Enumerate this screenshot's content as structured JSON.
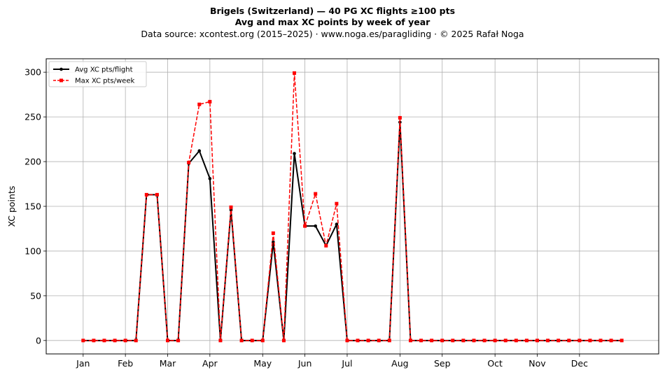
{
  "header": {
    "title": "Brigels (Switzerland)  —  40 PG XC flights ≥100 pts",
    "subtitle": "Avg and max XC points by week of year",
    "source": "Data source: xcontest.org (2015–2025)  ·  www.noga.es/paragliding  ·  © 2025 Rafał Noga"
  },
  "chart_data": {
    "type": "line",
    "title": "Brigels (Switzerland)  —  40 PG XC flights ≥100 pts",
    "subtitle": "Avg and max XC points by week of year",
    "xlabel": "",
    "ylabel": "XC points",
    "x": [
      1,
      2,
      3,
      4,
      5,
      6,
      7,
      8,
      9,
      10,
      11,
      12,
      13,
      14,
      15,
      16,
      17,
      18,
      19,
      20,
      21,
      22,
      23,
      24,
      25,
      26,
      27,
      28,
      29,
      30,
      31,
      32,
      33,
      34,
      35,
      36,
      37,
      38,
      39,
      40,
      41,
      42,
      43,
      44,
      45,
      46,
      47,
      48,
      49,
      50,
      51,
      52
    ],
    "x_ticks": [
      {
        "label": "Jan",
        "x": 1
      },
      {
        "label": "Feb",
        "x": 5
      },
      {
        "label": "Mar",
        "x": 9
      },
      {
        "label": "Apr",
        "x": 13
      },
      {
        "label": "May",
        "x": 18
      },
      {
        "label": "Jun",
        "x": 22
      },
      {
        "label": "Jul",
        "x": 26
      },
      {
        "label": "Aug",
        "x": 31
      },
      {
        "label": "Sep",
        "x": 35
      },
      {
        "label": "Oct",
        "x": 40
      },
      {
        "label": "Nov",
        "x": 44
      },
      {
        "label": "Dec",
        "x": 48
      }
    ],
    "y_ticks": [
      0,
      50,
      100,
      150,
      200,
      250,
      300
    ],
    "xlim": [
      -2.5,
      55.5
    ],
    "ylim": [
      -15,
      315
    ],
    "grid": true,
    "legend": "top-left",
    "series": [
      {
        "name": "Avg XC pts/flight",
        "color": "#000000",
        "style": "solid",
        "marker": "circle",
        "values": [
          0,
          0,
          0,
          0,
          0,
          0,
          163,
          163,
          0,
          0,
          198,
          212,
          181,
          0,
          146,
          0,
          0,
          0,
          110,
          0,
          209,
          128,
          128,
          106,
          130,
          0,
          0,
          0,
          0,
          0,
          244,
          0,
          0,
          0,
          0,
          0,
          0,
          0,
          0,
          0,
          0,
          0,
          0,
          0,
          0,
          0,
          0,
          0,
          0,
          0,
          0,
          0
        ]
      },
      {
        "name": "Max XC pts/week",
        "color": "#ff0000",
        "style": "dashed",
        "marker": "square",
        "values": [
          0,
          0,
          0,
          0,
          0,
          0,
          163,
          163,
          0,
          0,
          199,
          264,
          267,
          0,
          149,
          0,
          0,
          0,
          120,
          0,
          299,
          128,
          164,
          106,
          153,
          0,
          0,
          0,
          0,
          0,
          249,
          0,
          0,
          0,
          0,
          0,
          0,
          0,
          0,
          0,
          0,
          0,
          0,
          0,
          0,
          0,
          0,
          0,
          0,
          0,
          0,
          0
        ]
      }
    ]
  }
}
